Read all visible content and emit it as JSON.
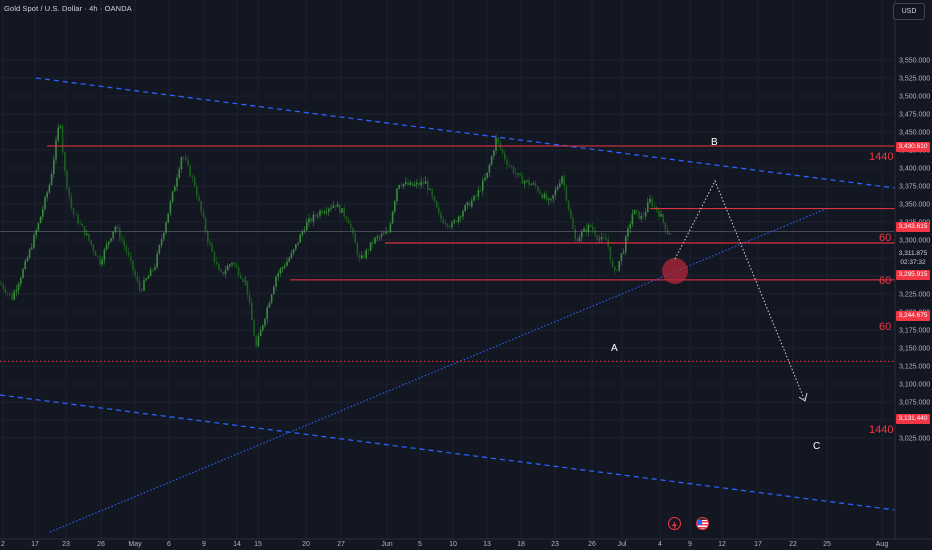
{
  "header": {
    "title": "Gold Spot / U.S. Dollar · 4h · OANDA"
  },
  "currency_button": {
    "label": "USD"
  },
  "price_axis": {
    "ticks": [
      "3,550.000",
      "3,525.000",
      "3,500.000",
      "3,475.000",
      "3,450.000",
      "3,425.000",
      "3,400.000",
      "3,375.000",
      "3,350.000",
      "3,325.000",
      "3,300.000",
      "3,275.000",
      "3,250.000",
      "3,225.000",
      "3,200.000",
      "3,175.000",
      "3,150.000",
      "3,125.000",
      "3,100.000",
      "3,075.000",
      "3,050.000",
      "3,025.000"
    ]
  },
  "time_axis": {
    "labels": [
      "2",
      "17",
      "23",
      "26",
      "May",
      "6",
      "9",
      "14",
      "15",
      "20",
      "27",
      "Jun",
      "5",
      "10",
      "13",
      "18",
      "23",
      "26",
      "Jul",
      "4",
      "9",
      "12",
      "17",
      "22",
      "25",
      "Aug"
    ]
  },
  "levels": {
    "level_1": "3,430.610",
    "level_2": "3,343.615",
    "level_3": "3,295.915",
    "level_4": "3,244.675",
    "level_5": "3,131.440"
  },
  "current_price": {
    "price": "3,311.875",
    "countdown": "02:37:32"
  },
  "timeframe_labels": {
    "tf_1440_top": "1440",
    "tf_60_a": "60",
    "tf_60_b": "60",
    "tf_60_c": "60",
    "tf_1440_bottom": "1440"
  },
  "wave_labels": {
    "a": "A",
    "b": "B",
    "c": "C"
  },
  "icons": [
    "lightning-event-icon",
    "us-flag-event-icon"
  ],
  "colors": {
    "background": "#131722",
    "candles": "#2e7d32",
    "level_line": "#f23645",
    "channel": "#2962ff",
    "projection": "#d1d4dc"
  }
}
